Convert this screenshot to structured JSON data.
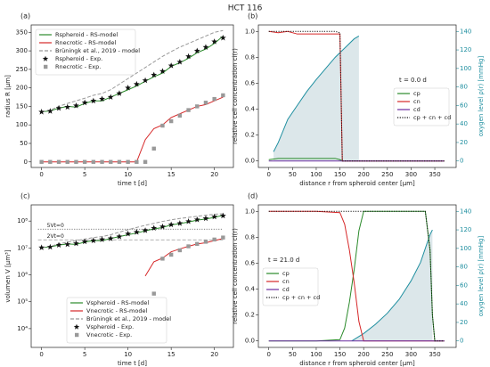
{
  "title": "HCT 116",
  "chart_data": [
    {
      "type": "line",
      "panel": "(a)",
      "xlabel": "time t [d]",
      "ylabel": "radius R [µm]",
      "xlim": [
        -1.2,
        22.2
      ],
      "xticks": [
        0,
        5,
        10,
        15,
        20
      ],
      "ylim": [
        -15,
        370
      ],
      "yticks": [
        0,
        50,
        100,
        150,
        200,
        250,
        300,
        350
      ],
      "legend": "upper left",
      "x": [
        0,
        1,
        2,
        3,
        4,
        5,
        6,
        7,
        8,
        9,
        10,
        11,
        12,
        13,
        14,
        15,
        16,
        17,
        18,
        19,
        20,
        21
      ],
      "series": [
        {
          "name": "Rspheroid - RS-model",
          "kind": "line",
          "style": "solid",
          "color": "#2a8a2a",
          "values": [
            135,
            138,
            145,
            150,
            148,
            158,
            165,
            165,
            175,
            185,
            195,
            205,
            218,
            230,
            240,
            258,
            268,
            280,
            295,
            305,
            320,
            340
          ]
        },
        {
          "name": "Rnecrotic - RS-model",
          "kind": "line",
          "style": "solid",
          "color": "#d62728",
          "values": [
            0,
            0,
            0,
            0,
            0,
            0,
            0,
            0,
            0,
            0,
            0,
            0,
            60,
            90,
            100,
            120,
            130,
            140,
            150,
            155,
            165,
            175
          ]
        },
        {
          "name": "Brüningk et al., 2019 - model",
          "kind": "line",
          "style": "dashed",
          "color": "#999999",
          "values": [
            135,
            140,
            150,
            158,
            165,
            172,
            180,
            185,
            195,
            210,
            225,
            240,
            255,
            270,
            285,
            298,
            310,
            320,
            330,
            340,
            350,
            355
          ]
        },
        {
          "name": "Rspheroid - Exp.",
          "kind": "scatter",
          "marker": "star",
          "color": "#111111",
          "values": [
            135,
            137,
            145,
            148,
            152,
            160,
            165,
            170,
            175,
            185,
            200,
            210,
            220,
            235,
            245,
            260,
            270,
            285,
            300,
            310,
            325,
            335
          ]
        },
        {
          "name": "Rnecrotic - Exp.",
          "kind": "scatter",
          "marker": "square",
          "color": "#999999",
          "values": [
            0,
            0,
            0,
            0,
            0,
            0,
            0,
            0,
            0,
            0,
            0,
            0,
            0,
            36,
            98,
            110,
            125,
            140,
            150,
            160,
            170,
            180
          ]
        }
      ]
    },
    {
      "type": "line",
      "panel": "(b)",
      "xlabel": "distance r from spheroid center [µm]",
      "ylabel": "relative cell concentration ci(r)",
      "y2label": "oxygen level ρ(r) [mmHg]",
      "annotation": "t = 0.0 d",
      "xlim": [
        -22,
        395
      ],
      "xticks": [
        0,
        50,
        100,
        150,
        200,
        250,
        300,
        350
      ],
      "ylim": [
        -0.05,
        1.05
      ],
      "yticks": [
        {
          "value": 0,
          "label": "0.0"
        },
        {
          "value": 0.2,
          "label": "0.2"
        },
        {
          "value": 0.4,
          "label": "0.4"
        },
        {
          "value": 0.6,
          "label": "0.6"
        },
        {
          "value": 0.8,
          "label": "0.8"
        },
        {
          "value": 1,
          "label": "1.0"
        }
      ],
      "y2lim": [
        -7,
        147
      ],
      "y2ticks": [
        0,
        20,
        40,
        60,
        80,
        100,
        120,
        140
      ],
      "legend": "center right",
      "x": [
        0,
        20,
        40,
        60,
        80,
        100,
        120,
        140,
        150,
        155,
        175,
        200,
        250,
        300,
        350,
        370
      ],
      "series": [
        {
          "name": "oxygen",
          "kind": "line",
          "legend": false,
          "axis": "y2",
          "style": "solid",
          "color": "#1f8fa0",
          "fill": "#dce7ea",
          "x": [
            10,
            20,
            40,
            60,
            80,
            100,
            120,
            140,
            160,
            180,
            190
          ],
          "values": [
            10,
            20,
            45,
            60,
            75,
            88,
            100,
            112,
            122,
            132,
            135
          ]
        },
        {
          "name": "cp",
          "kind": "line",
          "style": "solid",
          "color": "#2a8a2a",
          "values": [
            0.01,
            0.02,
            0.02,
            0.02,
            0.02,
            0.02,
            0.02,
            0.02,
            0.01,
            0,
            0,
            0,
            0,
            0,
            0,
            0
          ]
        },
        {
          "name": "cn",
          "kind": "line",
          "style": "solid",
          "color": "#d62728",
          "values": [
            1,
            0.99,
            1,
            0.98,
            0.98,
            0.98,
            0.98,
            0.98,
            0.98,
            0,
            0,
            0,
            0,
            0,
            0,
            0
          ]
        },
        {
          "name": "cd",
          "kind": "line",
          "style": "solid",
          "color": "#6a2ca0",
          "values": [
            0,
            0,
            0,
            0,
            0,
            0,
            0,
            0,
            0,
            0,
            0,
            0,
            0,
            0,
            0,
            0
          ]
        },
        {
          "name": "cp + cn + cd",
          "kind": "line",
          "style": "dotted",
          "color": "#111111",
          "values": [
            1,
            1,
            1,
            1,
            1,
            1,
            1,
            1,
            0.99,
            0,
            0,
            0,
            0,
            0,
            0,
            0
          ]
        }
      ]
    },
    {
      "type": "line",
      "panel": "(c)",
      "xlabel": "time t [d]",
      "ylabel": "volumen V [µm³]",
      "log": true,
      "xlim": [
        -1.2,
        22.2
      ],
      "xticks": [
        0,
        5,
        10,
        15,
        20
      ],
      "ylim": [
        2000,
        400000000
      ],
      "yticks": [
        {
          "value": 10000,
          "label": "10⁴"
        },
        {
          "value": 100000,
          "label": "10⁵"
        },
        {
          "value": 1000000,
          "label": "10⁶"
        },
        {
          "value": 10000000,
          "label": "10⁷"
        },
        {
          "value": 100000000,
          "label": "10⁸"
        }
      ],
      "legend": "lower left",
      "hlines": [
        {
          "value": 50000000,
          "label": "5Vt=0",
          "style": "dotted",
          "color": "#555555"
        },
        {
          "value": 20000000,
          "label": "2Vt=0",
          "style": "dashed",
          "color": "#999999"
        }
      ],
      "x": [
        0,
        1,
        2,
        3,
        4,
        5,
        6,
        7,
        8,
        9,
        10,
        11,
        12,
        13,
        14,
        15,
        16,
        17,
        18,
        19,
        20,
        21
      ],
      "series": [
        {
          "name": "Vspheroid - RS-model",
          "kind": "line",
          "style": "solid",
          "color": "#2a8a2a",
          "values": [
            10300000,
            11000000,
            12800000,
            14100000,
            13600000,
            16500000,
            18800000,
            18800000,
            22400000,
            26500000,
            31000000,
            36000000,
            43400000,
            51000000,
            57900000,
            71900000,
            80600000,
            92000000,
            108000000,
            119000000,
            137000000,
            165000000
          ]
        },
        {
          "name": "Vnecrotic - RS-model",
          "kind": "line",
          "style": "solid",
          "color": "#d62728",
          "values": [
            null,
            null,
            null,
            null,
            null,
            null,
            null,
            null,
            null,
            null,
            null,
            null,
            900000,
            3050000,
            4200000,
            7200000,
            9200000,
            11500000,
            14100000,
            15600000,
            18800000,
            22400000
          ]
        },
        {
          "name": "Brüningk et al., 2019 - model",
          "kind": "line",
          "style": "dashed",
          "color": "#999999",
          "values": [
            10300000,
            11500000,
            14100000,
            16500000,
            18800000,
            21300000,
            24400000,
            26500000,
            31000000,
            38800000,
            47700000,
            57900000,
            69500000,
            82400000,
            97000000,
            111000000,
            125000000,
            137000000,
            150000000,
            165000000,
            180000000,
            187000000
          ]
        },
        {
          "name": "Vspheroid - Exp.",
          "kind": "scatter",
          "marker": "star",
          "color": "#111111",
          "values": [
            10300000,
            10800000,
            12800000,
            13600000,
            14700000,
            17200000,
            18800000,
            20600000,
            22400000,
            26500000,
            33500000,
            38800000,
            44600000,
            54400000,
            61600000,
            73600000,
            82400000,
            97000000,
            113000000,
            125000000,
            144000000,
            157000000
          ]
        },
        {
          "name": "Vnecrotic - Exp.",
          "kind": "scatter",
          "marker": "square",
          "color": "#999999",
          "x": [
            13,
            14,
            15,
            16,
            17,
            18,
            19,
            20,
            21
          ],
          "values": [
            200000,
            4000000,
            5600000,
            8200000,
            11500000,
            14100000,
            17000000,
            20600000,
            24400000
          ]
        }
      ]
    },
    {
      "type": "line",
      "panel": "(d)",
      "xlabel": "distance r from spheroid center [µm]",
      "ylabel": "relative cell concentration ci(r)",
      "y2label": "oxygen level ρ(r) [mmHg]",
      "annotation": "t = 21.0 d",
      "xlim": [
        -22,
        395
      ],
      "xticks": [
        0,
        50,
        100,
        150,
        200,
        250,
        300,
        350
      ],
      "ylim": [
        -0.05,
        1.05
      ],
      "yticks": [
        {
          "value": 0,
          "label": "0.0"
        },
        {
          "value": 0.2,
          "label": "0.2"
        },
        {
          "value": 0.4,
          "label": "0.4"
        },
        {
          "value": 0.6,
          "label": "0.6"
        },
        {
          "value": 0.8,
          "label": "0.8"
        },
        {
          "value": 1,
          "label": "1.0"
        }
      ],
      "y2lim": [
        -7,
        147
      ],
      "y2ticks": [
        0,
        20,
        40,
        60,
        80,
        100,
        120,
        140
      ],
      "legend": "center left",
      "x": [
        0,
        50,
        100,
        150,
        160,
        170,
        180,
        190,
        200,
        250,
        300,
        330,
        340,
        345,
        350,
        370
      ],
      "series": [
        {
          "name": "oxygen",
          "kind": "line",
          "legend": false,
          "axis": "y2",
          "style": "solid",
          "color": "#1f8fa0",
          "fill": "#dce7ea",
          "x": [
            175,
            200,
            225,
            250,
            275,
            300,
            320,
            340,
            345
          ],
          "values": [
            0,
            8,
            18,
            30,
            45,
            65,
            85,
            115,
            120
          ]
        },
        {
          "name": "cp",
          "kind": "line",
          "style": "solid",
          "color": "#2a8a2a",
          "values": [
            0,
            0,
            0,
            0.01,
            0.1,
            0.3,
            0.55,
            0.85,
            1,
            1,
            1,
            1,
            0.7,
            0.2,
            0,
            0
          ]
        },
        {
          "name": "cn",
          "kind": "line",
          "style": "solid",
          "color": "#d62728",
          "values": [
            1,
            1,
            1,
            0.99,
            0.9,
            0.7,
            0.45,
            0.15,
            0,
            0,
            0,
            0,
            0,
            0,
            0,
            0
          ]
        },
        {
          "name": "cd",
          "kind": "line",
          "style": "solid",
          "color": "#6a2ca0",
          "values": [
            0,
            0,
            0,
            0,
            0,
            0,
            0,
            0,
            0,
            0,
            0,
            0,
            0,
            0,
            0,
            0
          ]
        },
        {
          "name": "cp + cn + cd",
          "kind": "line",
          "style": "dotted",
          "color": "#111111",
          "values": [
            1,
            1,
            1,
            1,
            1,
            1,
            1,
            1,
            1,
            1,
            1,
            1,
            0.7,
            0.2,
            0,
            0
          ]
        }
      ]
    }
  ]
}
